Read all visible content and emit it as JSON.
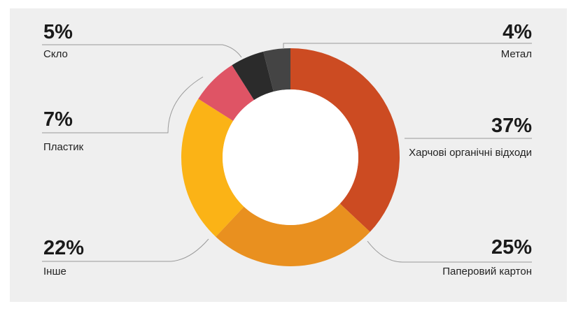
{
  "chart_data": {
    "type": "pie",
    "title": "",
    "slices": [
      {
        "label": "Харчові органічні відходи",
        "value": 37,
        "display": "37%",
        "color": "#cc4b22"
      },
      {
        "label": "Паперовий картон",
        "value": 25,
        "display": "25%",
        "color": "#e9901f"
      },
      {
        "label": "Інше",
        "value": 22,
        "display": "22%",
        "color": "#fbb316"
      },
      {
        "label": "Пластик",
        "value": 7,
        "display": "7%",
        "color": "#df5465"
      },
      {
        "label": "Скло",
        "value": 5,
        "display": "5%",
        "color": "#2b2b2b"
      },
      {
        "label": "Метал",
        "value": 4,
        "display": "4%",
        "color": "#444444"
      }
    ]
  }
}
